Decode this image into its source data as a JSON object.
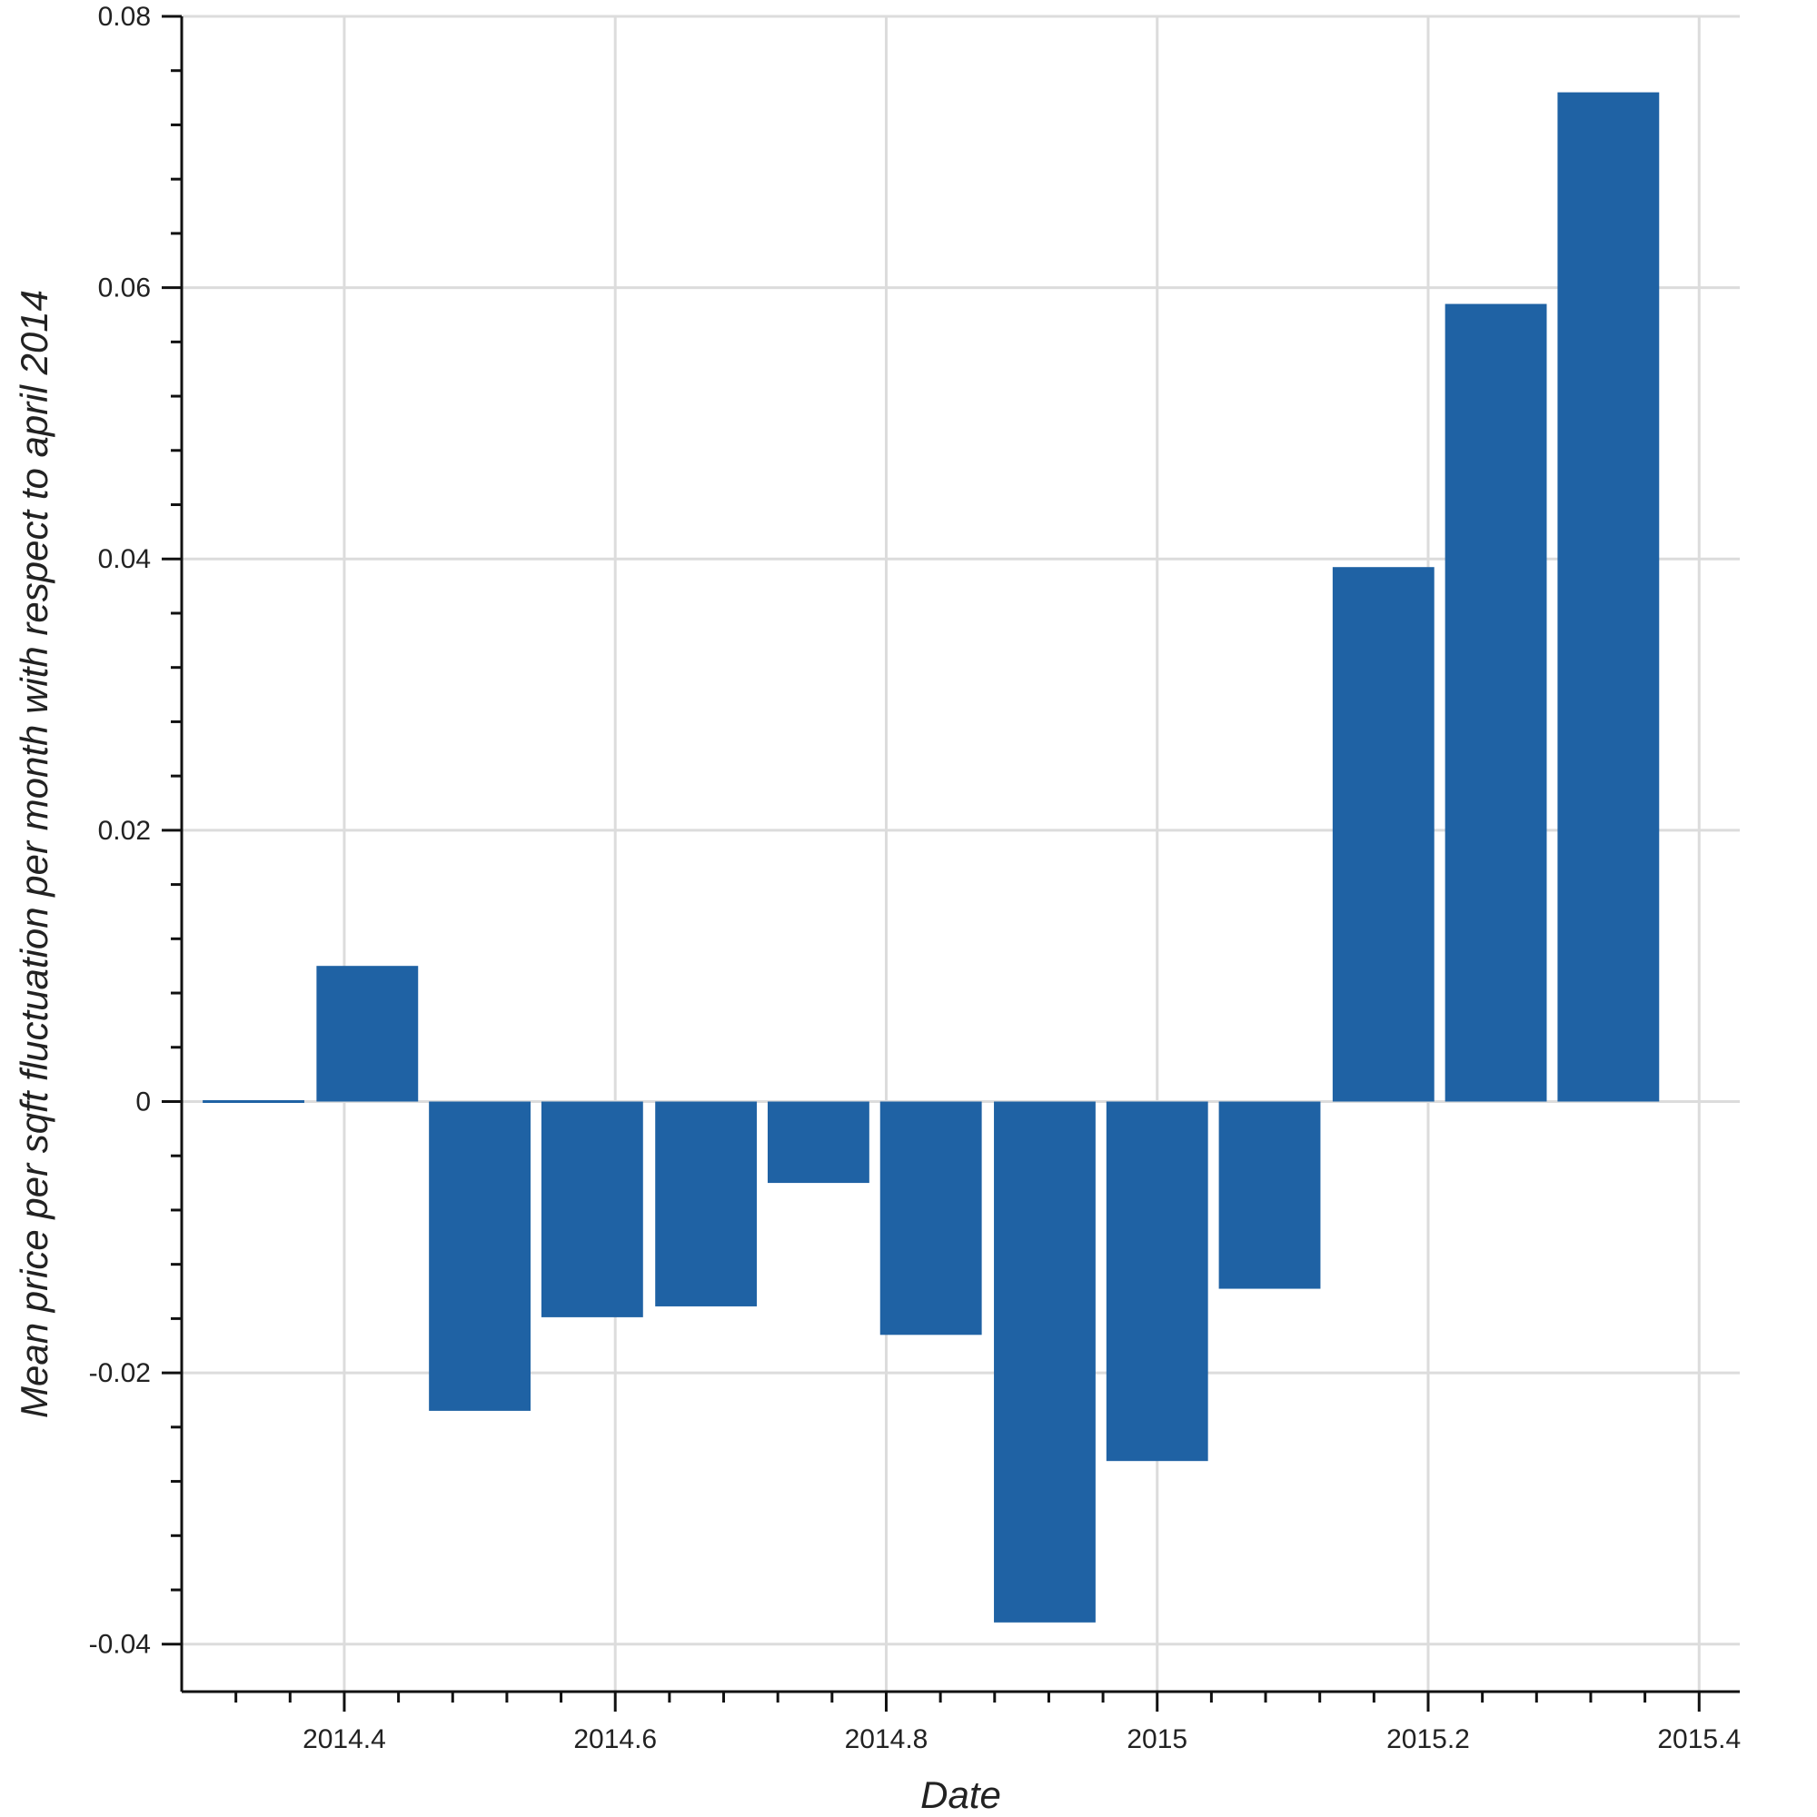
{
  "chart_data": {
    "type": "bar",
    "title": "",
    "xlabel": "Date",
    "ylabel": "Mean price per sqft fluctuation per month with respect to april 2014",
    "xlim": [
      2014.28,
      2015.43
    ],
    "ylim": [
      -0.0435,
      0.08
    ],
    "bar_width": 0.075,
    "x": [
      2014.333,
      2014.417,
      2014.5,
      2014.583,
      2014.667,
      2014.75,
      2014.833,
      2014.917,
      2015.0,
      2015.083,
      2015.167,
      2015.25,
      2015.333
    ],
    "values": [
      0.0,
      0.01,
      -0.0228,
      -0.0159,
      -0.0151,
      -0.006,
      -0.0172,
      -0.0384,
      -0.0265,
      -0.0138,
      0.0394,
      0.0588,
      0.0744
    ],
    "xticks": [
      2014.4,
      2014.6,
      2014.8,
      2015.0,
      2015.2,
      2015.4
    ],
    "xtick_labels": [
      "2014.4",
      "2014.6",
      "2014.8",
      "2015",
      "2015.2",
      "2015.4"
    ],
    "yticks": [
      -0.04,
      -0.02,
      0,
      0.02,
      0.04,
      0.06,
      0.08
    ],
    "ytick_labels": [
      "-0.04",
      "-0.02",
      "0",
      "0.02",
      "0.04",
      "0.06",
      "0.08"
    ],
    "grid": true,
    "legend": "none",
    "bar_color": "#1f62a4"
  }
}
